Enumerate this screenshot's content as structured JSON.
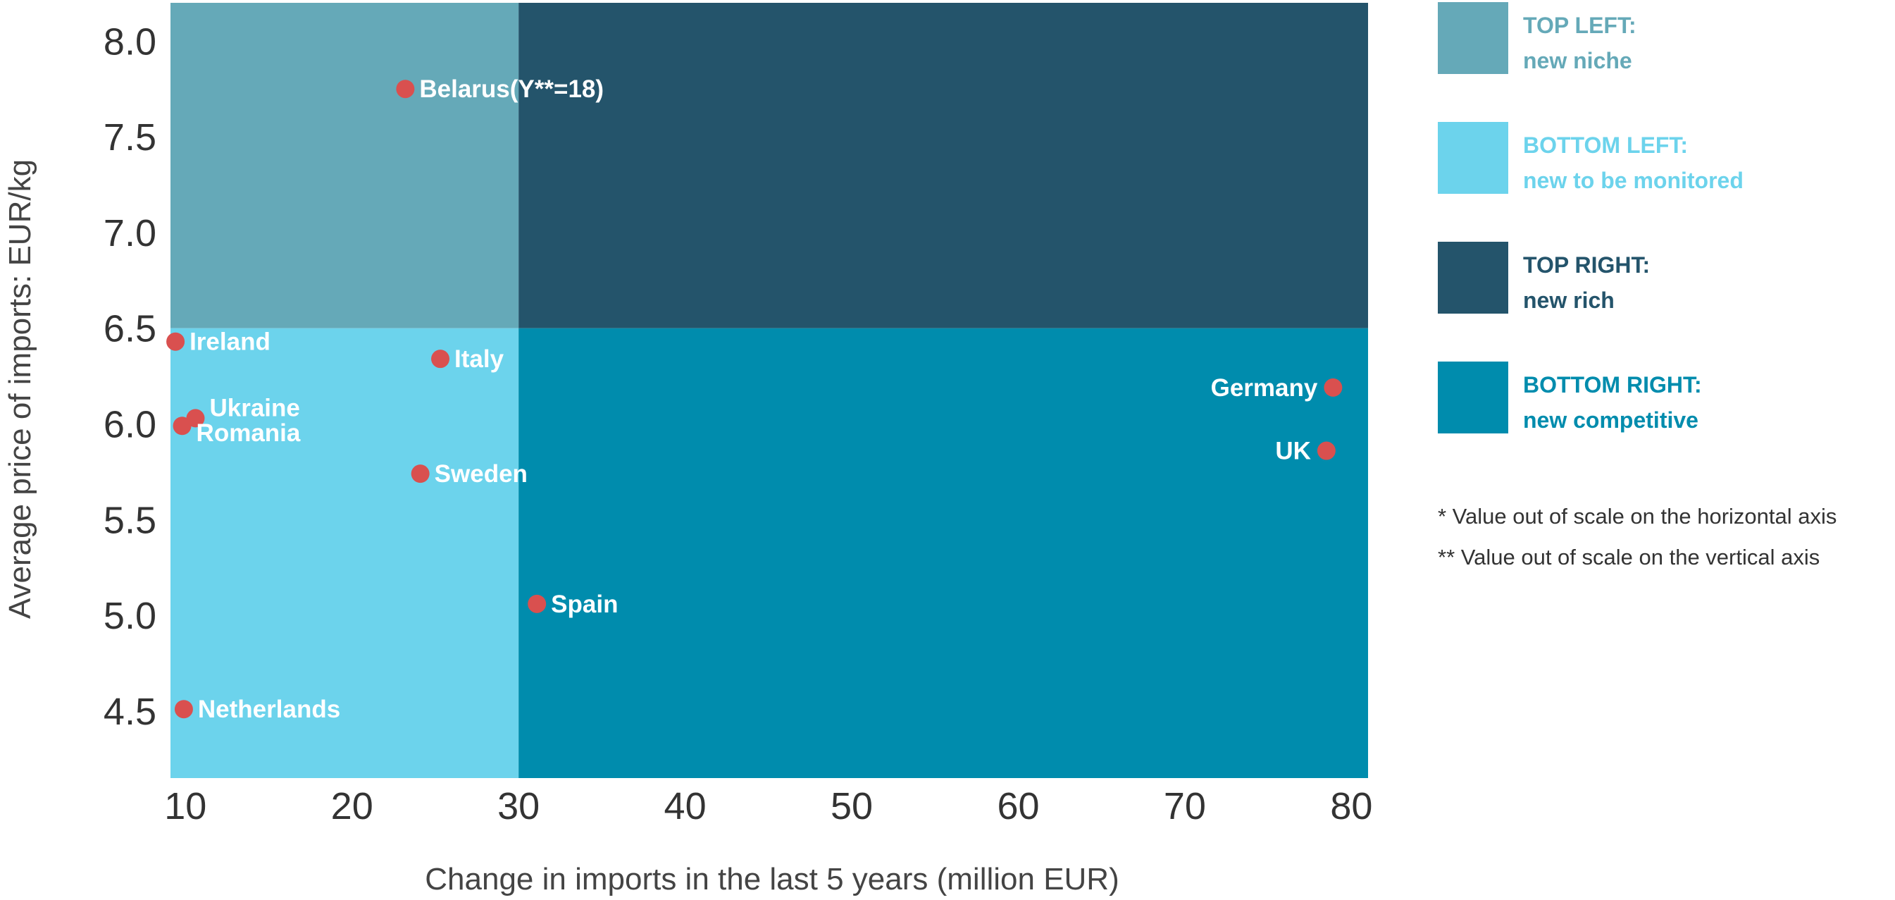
{
  "chart_data": {
    "type": "scatter",
    "xlabel": "Change in imports in the last 5 years (million EUR)",
    "ylabel": "Average price of imports: EUR/kg",
    "xlim": [
      9.1,
      81
    ],
    "ylim": [
      4.15,
      8.2
    ],
    "x_ticks": [
      10,
      20,
      30,
      40,
      50,
      60,
      70,
      80
    ],
    "x_tick_labels": [
      "10",
      "20",
      "30",
      "40",
      "50",
      "60",
      "70",
      "80"
    ],
    "y_ticks": [
      4.5,
      5.0,
      5.5,
      6.0,
      6.5,
      7.0,
      7.5,
      8.0
    ],
    "y_tick_labels": [
      "4.5",
      "5.0",
      "5.5",
      "6.0",
      "6.5",
      "7.0",
      "7.5",
      "8.0"
    ],
    "quadrant_split": {
      "x": 30,
      "y": 6.5
    },
    "quadrant_colors": {
      "top_left": "#65a9b8",
      "bottom_left": "#6cd3ec",
      "top_right": "#24546b",
      "bottom_right": "#008cad"
    },
    "point_color": "#d9504f",
    "points": [
      {
        "label": "Belarus(Y**=18)",
        "x": 23.2,
        "y": 7.75,
        "label_side": "right"
      },
      {
        "label": "Ireland",
        "x": 9.4,
        "y": 6.43,
        "label_side": "right"
      },
      {
        "label": "Italy",
        "x": 25.3,
        "y": 6.34,
        "label_side": "right"
      },
      {
        "label": "Ukraine",
        "x": 10.6,
        "y": 6.03,
        "label_side": "right-up"
      },
      {
        "label": "Romania",
        "x": 9.8,
        "y": 5.99,
        "label_side": "right-down"
      },
      {
        "label": "Sweden",
        "x": 24.1,
        "y": 5.74,
        "label_side": "right"
      },
      {
        "label": "Spain",
        "x": 31.1,
        "y": 5.06,
        "label_side": "right"
      },
      {
        "label": "Netherlands",
        "x": 9.9,
        "y": 4.51,
        "label_side": "right"
      },
      {
        "label": "Germany",
        "x": 78.9,
        "y": 6.19,
        "label_side": "left"
      },
      {
        "label": "UK",
        "x": 78.5,
        "y": 5.86,
        "label_side": "left"
      }
    ]
  },
  "legend": [
    {
      "line1": "TOP LEFT:",
      "line2": "new niche",
      "color": "#65a9b8"
    },
    {
      "line1": "BOTTOM LEFT:",
      "line2": "new to be monitored",
      "color": "#6cd3ec"
    },
    {
      "line1": "TOP RIGHT:",
      "line2": "new rich",
      "color": "#24546b"
    },
    {
      "line1": "BOTTOM RIGHT:",
      "line2": "new competitive",
      "color": "#008cad"
    }
  ],
  "notes": [
    "* Value out of scale on the horizontal axis",
    "** Value out of scale on the vertical axis"
  ]
}
